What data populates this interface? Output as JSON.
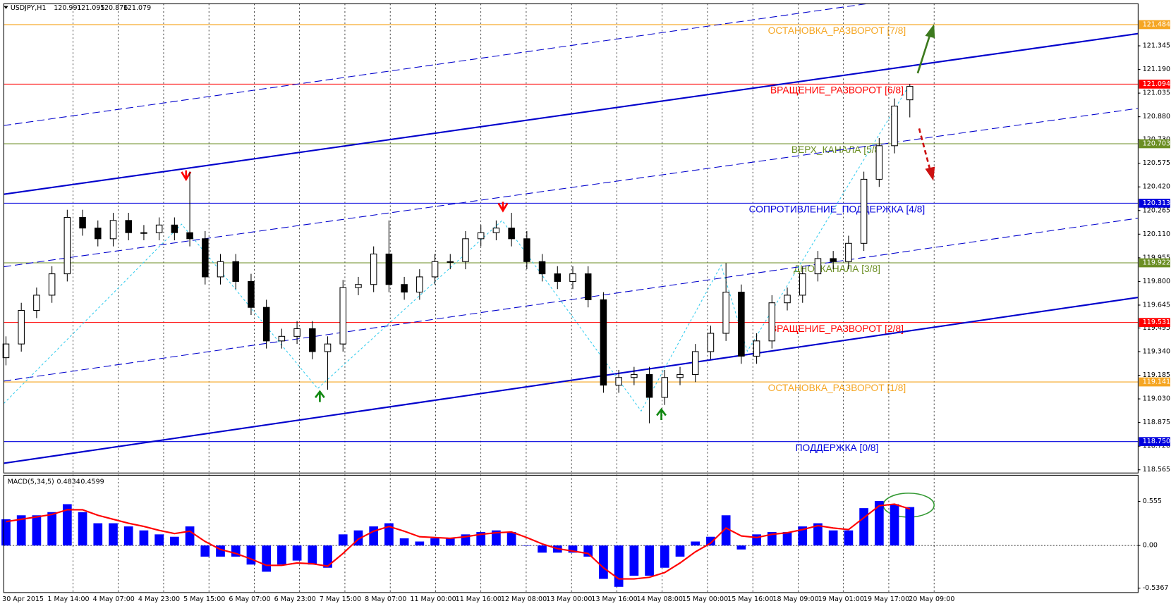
{
  "chart_data": [
    {
      "type": "candlestick",
      "title": "USDJPY,H1",
      "open": [
        119.3,
        119.39,
        119.61,
        119.71,
        119.85,
        120.22,
        120.15,
        120.08,
        120.2,
        120.12,
        120.12,
        120.17,
        120.12,
        120.08,
        119.83,
        119.93,
        119.8,
        119.63,
        119.41,
        119.44,
        119.49,
        119.34,
        119.39,
        119.76,
        119.78,
        119.98,
        119.78,
        119.73,
        119.83,
        119.93,
        119.93,
        120.08,
        120.12,
        120.15,
        120.08,
        119.93,
        119.85,
        119.8,
        119.85,
        119.68,
        119.12,
        119.17,
        119.19,
        119.04,
        119.17,
        119.19,
        119.34,
        119.46,
        119.73,
        119.31,
        119.41,
        119.66,
        119.71,
        119.85,
        119.95,
        119.93,
        120.05,
        120.47,
        120.69,
        120.991
      ],
      "high": [
        119.44,
        119.66,
        119.76,
        119.9,
        120.27,
        120.27,
        120.2,
        120.25,
        120.25,
        120.17,
        120.22,
        120.22,
        120.52,
        120.13,
        119.98,
        119.98,
        119.85,
        119.68,
        119.49,
        119.54,
        119.54,
        119.44,
        119.81,
        119.83,
        120.03,
        120.2,
        119.83,
        119.88,
        119.98,
        119.98,
        120.13,
        120.17,
        120.2,
        120.25,
        120.13,
        119.98,
        119.9,
        119.9,
        119.9,
        119.73,
        119.22,
        119.24,
        119.24,
        119.22,
        119.24,
        119.39,
        119.51,
        119.92,
        119.78,
        119.46,
        119.71,
        119.76,
        119.9,
        120.0,
        120.0,
        120.1,
        120.52,
        120.74,
        121.0,
        121.095
      ],
      "low": [
        119.25,
        119.34,
        119.56,
        119.66,
        119.8,
        120.1,
        120.03,
        120.03,
        120.07,
        120.07,
        120.07,
        120.07,
        120.03,
        119.78,
        119.78,
        119.75,
        119.58,
        119.36,
        119.36,
        119.39,
        119.29,
        119.09,
        119.34,
        119.71,
        119.73,
        119.73,
        119.68,
        119.68,
        119.78,
        119.88,
        119.88,
        120.03,
        120.07,
        120.03,
        119.88,
        119.8,
        119.75,
        119.75,
        119.63,
        119.07,
        119.07,
        119.12,
        118.87,
        118.99,
        119.12,
        119.14,
        119.29,
        119.41,
        119.26,
        119.26,
        119.36,
        119.61,
        119.66,
        119.8,
        119.88,
        119.88,
        120.0,
        120.42,
        120.64,
        120.876
      ],
      "close": [
        119.39,
        119.61,
        119.71,
        119.85,
        120.22,
        120.15,
        120.08,
        120.2,
        120.12,
        120.12,
        120.17,
        120.12,
        120.08,
        119.83,
        119.93,
        119.8,
        119.63,
        119.41,
        119.44,
        119.49,
        119.34,
        119.39,
        119.76,
        119.78,
        119.98,
        119.78,
        119.73,
        119.83,
        119.93,
        119.93,
        120.08,
        120.12,
        120.15,
        120.08,
        119.93,
        119.85,
        119.8,
        119.85,
        119.68,
        119.12,
        119.17,
        119.19,
        119.04,
        119.17,
        119.19,
        119.34,
        119.46,
        119.73,
        119.31,
        119.41,
        119.66,
        119.71,
        119.85,
        119.95,
        119.93,
        120.05,
        120.47,
        120.69,
        120.95,
        121.079
      ],
      "up_fill": "#ffffff",
      "down_fill": "#000000",
      "wick_color": "#000000",
      "ylim": [
        118.544,
        121.621
      ],
      "yticks": [
        118.565,
        {
          "value": 118.72,
          "label": "118.720"
        },
        118.875,
        {
          "value": 119.03,
          "label": "119.030"
        },
        119.185,
        {
          "value": 119.34,
          "label": "119.340"
        },
        119.495,
        119.645,
        {
          "value": 119.8,
          "label": "119.800"
        },
        119.955,
        {
          "value": 120.11,
          "label": "120.110"
        },
        120.265,
        {
          "value": 120.42,
          "label": "120.420"
        },
        120.575,
        {
          "value": 120.73,
          "label": "120.730"
        },
        {
          "value": 120.88,
          "label": "120.880"
        },
        121.035,
        {
          "value": 121.19,
          "label": "121.190"
        },
        121.345
      ],
      "x_labels": [
        "30 Apr 2015",
        "1 May 14:00",
        "4 May 07:00",
        "4 May 23:00",
        "5 May 15:00",
        "6 May 07:00",
        "6 May 23:00",
        "7 May 15:00",
        "8 May 07:00",
        "11 May 00:00",
        "11 May 16:00",
        "12 May 08:00",
        "13 May 00:00",
        "13 May 16:00",
        "14 May 08:00",
        "15 May 00:00",
        "15 May 16:00",
        "18 May 09:00",
        "19 May 01:00",
        "19 May 17:00",
        "20 May 09:00"
      ],
      "levels": [
        {
          "name": "ОСТАНОВКА_РАЗВОРОТ [7/8]",
          "value": 121.484,
          "color": "#f5a623"
        },
        {
          "name": "ВРАЩЕНИЕ_РАЗВОРОТ [6/8]",
          "value": 121.094,
          "color": "#ff0000"
        },
        {
          "name": "ВЕРХ_КАНАЛА [5/8]",
          "value": 120.703,
          "color": "#6b8e23"
        },
        {
          "name": "СОПРОТИВЛЕНИЕ_ПОДДЕРЖКА [4/8]",
          "value": 120.313,
          "color": "#0000dd"
        },
        {
          "name": "ДНО_КАНАЛА [3/8]",
          "value": 119.922,
          "color": "#6b8e23"
        },
        {
          "name": "ВРАЩЕНИЕ_РАЗВОРОТ [2/8]",
          "value": 119.531,
          "color": "#ff0000"
        },
        {
          "name": "ОСТАНОВКА_РАЗВОРОТ [1/8]",
          "value": 119.141,
          "color": "#f5a623"
        },
        {
          "name": "ПОДДЕРЖКА [0/8]",
          "value": 118.75,
          "value_label": "118.750",
          "color": "#0000dd"
        }
      ]
    },
    {
      "type": "macd",
      "title": "MACD(5,34,5)",
      "histogram": {
        "color": "#0000ff",
        "values": [
          0.33,
          0.38,
          0.38,
          0.42,
          0.52,
          0.42,
          0.28,
          0.28,
          0.24,
          0.19,
          0.14,
          0.11,
          0.24,
          -0.14,
          -0.14,
          -0.14,
          -0.24,
          -0.33,
          -0.24,
          -0.19,
          -0.24,
          -0.28,
          0.14,
          0.19,
          0.24,
          0.28,
          0.09,
          0.05,
          0.09,
          0.09,
          0.14,
          0.17,
          0.19,
          0.17,
          0,
          -0.09,
          -0.09,
          -0.09,
          -0.14,
          -0.42,
          -0.52,
          -0.38,
          -0.38,
          -0.28,
          -0.14,
          0.05,
          0.11,
          0.38,
          -0.05,
          0.14,
          0.17,
          0.17,
          0.24,
          0.28,
          0.19,
          0.19,
          0.47,
          0.56,
          0.52,
          0.4834
        ]
      },
      "signal": {
        "color": "#ff0000",
        "values": [
          0.3,
          0.33,
          0.36,
          0.39,
          0.45,
          0.45,
          0.38,
          0.33,
          0.28,
          0.24,
          0.19,
          0.15,
          0.18,
          0.05,
          -0.05,
          -0.1,
          -0.17,
          -0.25,
          -0.25,
          -0.22,
          -0.23,
          -0.26,
          -0.1,
          0.08,
          0.18,
          0.24,
          0.18,
          0.11,
          0.1,
          0.09,
          0.11,
          0.14,
          0.16,
          0.17,
          0.1,
          0.02,
          -0.04,
          -0.07,
          -0.1,
          -0.28,
          -0.42,
          -0.42,
          -0.4,
          -0.34,
          -0.22,
          -0.08,
          0.03,
          0.22,
          0.12,
          0.1,
          0.14,
          0.16,
          0.2,
          0.25,
          0.22,
          0.2,
          0.35,
          0.5,
          0.52,
          0.4599
        ]
      },
      "ylim": [
        -0.592,
        0.884
      ],
      "yticks": [
        -0.5367,
        {
          "value": 0,
          "label": "0.00"
        },
        0.555
      ]
    }
  ]
}
